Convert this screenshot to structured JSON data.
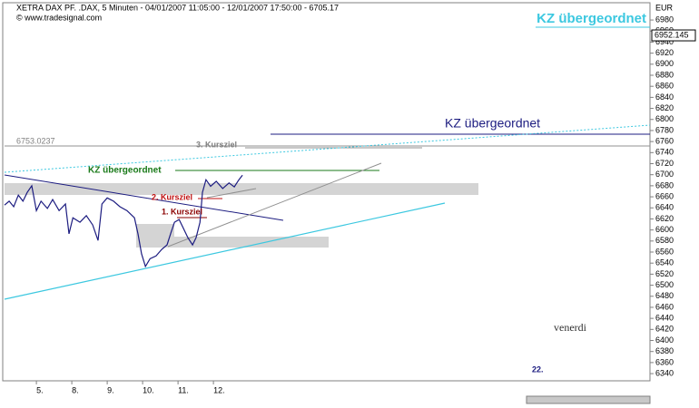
{
  "chart_data": {
    "type": "line",
    "title": "XETRA DAX PF. .DAX, 5 Minuten - 04/01/2007 11:05:00 - 12/01/2007 17:50:00 - 6705.17",
    "subtitle": "© www.tradesignal.com",
    "y_unit": "EUR",
    "corner_label": "KZ übergeordnet",
    "last_price": 6952.145,
    "color": "#1c1c80",
    "x": [
      0.1,
      0.23,
      0.36,
      0.49,
      0.62,
      0.74,
      0.87,
      1.0,
      1.13,
      1.31,
      1.46,
      1.64,
      1.82,
      1.92,
      2.03,
      2.23,
      2.41,
      2.59,
      2.74,
      2.85,
      3.0,
      3.18,
      3.36,
      3.56,
      3.77,
      3.87,
      3.97,
      4.08,
      4.21,
      4.38,
      4.54,
      4.69,
      4.79,
      4.9,
      5.03,
      5.15,
      5.28,
      5.41,
      5.51,
      5.62,
      5.69,
      5.79,
      5.92,
      6.08,
      6.26,
      6.44,
      6.59,
      6.72,
      6.82
    ],
    "values": [
      6645,
      6652,
      6642,
      6663,
      6652,
      6668,
      6680,
      6635,
      6652,
      6639,
      6655,
      6635,
      6647,
      6593,
      6622,
      6614,
      6626,
      6609,
      6581,
      6647,
      6658,
      6652,
      6642,
      6635,
      6622,
      6593,
      6557,
      6534,
      6548,
      6553,
      6565,
      6573,
      6593,
      6614,
      6619,
      6603,
      6586,
      6573,
      6586,
      6614,
      6668,
      6691,
      6679,
      6688,
      6675,
      6685,
      6678,
      6691,
      6699
    ],
    "xlim": [
      0.1,
      18.33
    ],
    "xticks": [
      {
        "value": 1,
        "label": "5."
      },
      {
        "value": 2,
        "label": "8."
      },
      {
        "value": 3,
        "label": "9."
      },
      {
        "value": 4,
        "label": "10."
      },
      {
        "value": 5,
        "label": "11."
      },
      {
        "value": 6,
        "label": "12."
      }
    ],
    "ylim": [
      6327,
      7008
    ],
    "yticks": [
      6340,
      6360,
      6380,
      6400,
      6420,
      6440,
      6460,
      6480,
      6500,
      6520,
      6540,
      6560,
      6580,
      6600,
      6620,
      6640,
      6660,
      6680,
      6700,
      6720,
      6740,
      6760,
      6780,
      6800,
      6820,
      6840,
      6860,
      6880,
      6900,
      6920,
      6940,
      6960,
      6980
    ],
    "annotations": [
      {
        "text": "KZ übergeordnet",
        "color": "#1a7a1a"
      },
      {
        "text": "2. Kursziel",
        "color": "#c01010"
      },
      {
        "text": "1. Kursziel",
        "color": "#8b0000"
      },
      {
        "text": "3. Kursziel",
        "color": "#808080"
      },
      {
        "text": "KZ übergeordnet",
        "color": "#1c1c80"
      },
      {
        "text": "6753.0237",
        "color": "#808080"
      },
      {
        "text": "venerdi",
        "color": "#333333"
      },
      {
        "text": "22.",
        "color": "#1c1c80"
      }
    ]
  }
}
